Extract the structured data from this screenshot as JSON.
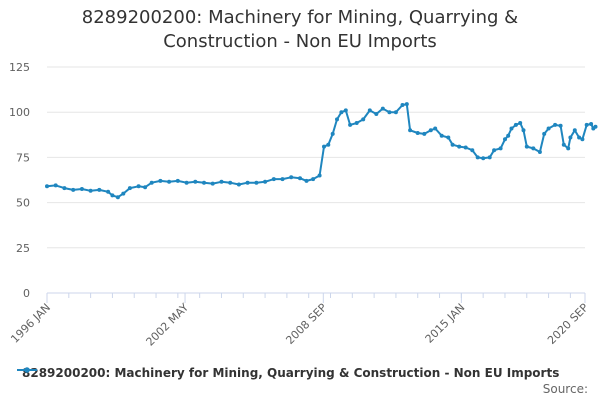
{
  "chart_data": {
    "type": "line",
    "title_lines": [
      "8289200200: Machinery for Mining, Quarrying &",
      "Construction - Non EU Imports"
    ],
    "ylim": [
      0,
      125
    ],
    "yticks": [
      0,
      25,
      50,
      75,
      100,
      125
    ],
    "xlim": [
      1996.0,
      2020.67
    ],
    "xticks": [
      {
        "value": 1996.0,
        "label": "1996 JAN"
      },
      {
        "value": 2002.33,
        "label": "2002 MAY"
      },
      {
        "value": 2008.67,
        "label": "2008 SEP"
      },
      {
        "value": 2015.0,
        "label": "2015 JAN"
      },
      {
        "value": 2020.67,
        "label": "2020 SEP"
      }
    ],
    "grid": true,
    "legend_position": "bottom-left",
    "series": [
      {
        "name": "8289200200: Machinery for Mining, Quarrying & Construction - Non EU Imports",
        "color": "#1f86bf",
        "points": [
          [
            1996.0,
            59
          ],
          [
            1996.4,
            59.5
          ],
          [
            1996.8,
            58
          ],
          [
            1997.2,
            57
          ],
          [
            1997.6,
            57.5
          ],
          [
            1998.0,
            56.5
          ],
          [
            1998.4,
            57
          ],
          [
            1998.8,
            56
          ],
          [
            1999.0,
            54
          ],
          [
            1999.25,
            53
          ],
          [
            1999.5,
            55
          ],
          [
            1999.8,
            58
          ],
          [
            2000.2,
            59
          ],
          [
            2000.5,
            58.5
          ],
          [
            2000.8,
            61
          ],
          [
            2001.2,
            62
          ],
          [
            2001.6,
            61.5
          ],
          [
            2002.0,
            62
          ],
          [
            2002.4,
            61
          ],
          [
            2002.8,
            61.5
          ],
          [
            2003.2,
            61
          ],
          [
            2003.6,
            60.5
          ],
          [
            2004.0,
            61.5
          ],
          [
            2004.4,
            61
          ],
          [
            2004.8,
            60
          ],
          [
            2005.2,
            61
          ],
          [
            2005.6,
            61
          ],
          [
            2006.0,
            61.5
          ],
          [
            2006.4,
            63
          ],
          [
            2006.8,
            63
          ],
          [
            2007.2,
            64
          ],
          [
            2007.6,
            63.5
          ],
          [
            2007.9,
            62
          ],
          [
            2008.2,
            63
          ],
          [
            2008.5,
            65
          ],
          [
            2008.7,
            81
          ],
          [
            2008.9,
            82
          ],
          [
            2009.1,
            88
          ],
          [
            2009.3,
            96
          ],
          [
            2009.5,
            100
          ],
          [
            2009.7,
            101
          ],
          [
            2009.9,
            93
          ],
          [
            2010.2,
            94
          ],
          [
            2010.5,
            96
          ],
          [
            2010.8,
            101
          ],
          [
            2011.1,
            99
          ],
          [
            2011.4,
            102
          ],
          [
            2011.7,
            100
          ],
          [
            2012.0,
            100
          ],
          [
            2012.3,
            104
          ],
          [
            2012.5,
            104.5
          ],
          [
            2012.65,
            90
          ],
          [
            2013.0,
            88.5
          ],
          [
            2013.3,
            88
          ],
          [
            2013.6,
            90
          ],
          [
            2013.8,
            91
          ],
          [
            2014.1,
            87
          ],
          [
            2014.4,
            86
          ],
          [
            2014.6,
            82
          ],
          [
            2014.9,
            81
          ],
          [
            2015.2,
            80.5
          ],
          [
            2015.5,
            79
          ],
          [
            2015.75,
            75
          ],
          [
            2016.0,
            74.5
          ],
          [
            2016.3,
            75
          ],
          [
            2016.5,
            79
          ],
          [
            2016.8,
            80
          ],
          [
            2017.0,
            85
          ],
          [
            2017.15,
            87
          ],
          [
            2017.3,
            91
          ],
          [
            2017.5,
            93
          ],
          [
            2017.7,
            94
          ],
          [
            2017.85,
            90
          ],
          [
            2018.0,
            81
          ],
          [
            2018.3,
            80
          ],
          [
            2018.6,
            78
          ],
          [
            2018.8,
            88
          ],
          [
            2019.0,
            91
          ],
          [
            2019.3,
            93
          ],
          [
            2019.55,
            92.5
          ],
          [
            2019.7,
            82
          ],
          [
            2019.9,
            80
          ],
          [
            2020.0,
            86
          ],
          [
            2020.2,
            90
          ],
          [
            2020.4,
            86
          ],
          [
            2020.55,
            85
          ],
          [
            2020.75,
            93
          ],
          [
            2020.95,
            93.5
          ],
          [
            2021.05,
            91
          ],
          [
            2021.15,
            92
          ]
        ]
      }
    ]
  },
  "credits": "Source:"
}
